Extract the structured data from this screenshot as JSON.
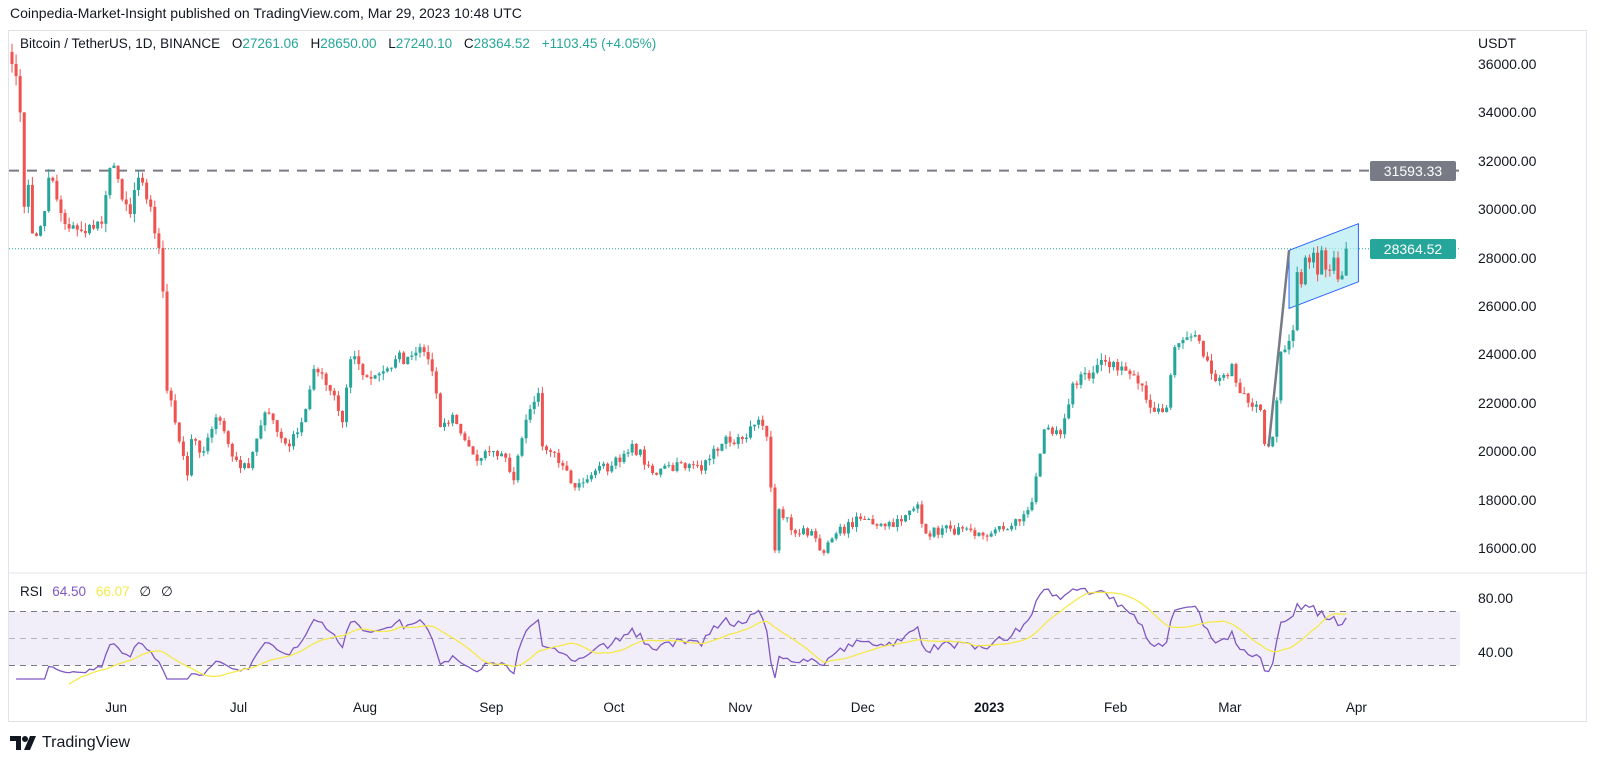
{
  "header": {
    "publisher": "Coinpedia-Market-Insight published on TradingView.com, Mar 29, 2023 10:48 UTC",
    "symbol": "Bitcoin / TetherUS, 1D, BINANCE",
    "open_label": "O",
    "open": "27261.06",
    "high_label": "H",
    "high": "28650.00",
    "low_label": "L",
    "low": "27240.10",
    "close_label": "C",
    "close": "28364.52",
    "change": "+1103.45 (+4.05%)"
  },
  "price_axis": {
    "currency": "USDT",
    "ticks": [
      "36000.00",
      "34000.00",
      "32000.00",
      "30000.00",
      "28000.00",
      "26000.00",
      "24000.00",
      "22000.00",
      "20000.00",
      "18000.00",
      "16000.00"
    ]
  },
  "markers": {
    "horizontal_level": "31593.33",
    "last_price": "28364.52"
  },
  "time_axis": {
    "ticks": [
      {
        "label": "Jun",
        "date": "2022-06-01"
      },
      {
        "label": "Jul",
        "date": "2022-07-01"
      },
      {
        "label": "Aug",
        "date": "2022-08-01"
      },
      {
        "label": "Sep",
        "date": "2022-09-01"
      },
      {
        "label": "Oct",
        "date": "2022-10-01"
      },
      {
        "label": "Nov",
        "date": "2022-11-01"
      },
      {
        "label": "Dec",
        "date": "2022-12-01"
      },
      {
        "label": "2023",
        "date": "2023-01-01"
      },
      {
        "label": "Feb",
        "date": "2023-02-01"
      },
      {
        "label": "Mar",
        "date": "2023-03-01"
      },
      {
        "label": "Apr",
        "date": "2023-04-01"
      }
    ]
  },
  "rsi": {
    "label": "RSI",
    "value": "64.50",
    "ma": "66.07",
    "na1": "∅",
    "na2": "∅",
    "ticks": [
      "80.00",
      "40.00"
    ],
    "upper": 70,
    "middle": 50,
    "lower": 30
  },
  "footer": {
    "brand": "TradingView"
  },
  "colors": {
    "up": "#26a69a",
    "down": "#ef5350",
    "rsi": "#7e57c2",
    "rsi_ma": "#f5e94a",
    "level": "#787b86",
    "channel": "#2962ff"
  },
  "chart_data": {
    "type": "candlestick",
    "title": "Bitcoin / TetherUS, 1D, BINANCE",
    "ylabel": "USDT",
    "ylim": [
      15500,
      36300
    ],
    "start_date": "2022-05-06",
    "end_date": "2023-03-29",
    "last_candle": {
      "open": 27261.06,
      "high": 28650.0,
      "low": 27240.1,
      "close": 28364.52
    },
    "horizontal_level": 31593.33,
    "channel": {
      "start_date": "2023-03-15",
      "end_date": "2023-04-01",
      "upper": [
        28300,
        29400
      ],
      "lower": [
        25900,
        27000
      ]
    },
    "flagpole": {
      "from": [
        "2023-03-10",
        20200
      ],
      "to": [
        "2023-03-15",
        28300
      ]
    },
    "approx_closes": [
      [
        "2022-05-06",
        36000
      ],
      [
        "2022-05-07",
        35500
      ],
      [
        "2022-05-08",
        34000
      ],
      [
        "2022-05-09",
        30100
      ],
      [
        "2022-05-10",
        31000
      ],
      [
        "2022-05-11",
        29000
      ],
      [
        "2022-05-12",
        28900
      ],
      [
        "2022-05-13",
        29300
      ],
      [
        "2022-05-15",
        31300
      ],
      [
        "2022-05-17",
        30400
      ],
      [
        "2022-05-20",
        29200
      ],
      [
        "2022-05-23",
        29100
      ],
      [
        "2022-05-26",
        29200
      ],
      [
        "2022-05-28",
        29400
      ],
      [
        "2022-05-30",
        31700
      ],
      [
        "2022-05-31",
        31800
      ],
      [
        "2022-06-02",
        30400
      ],
      [
        "2022-06-04",
        29800
      ],
      [
        "2022-06-06",
        31300
      ],
      [
        "2022-06-07",
        31100
      ],
      [
        "2022-06-09",
        30100
      ],
      [
        "2022-06-10",
        29000
      ],
      [
        "2022-06-11",
        28400
      ],
      [
        "2022-06-12",
        26600
      ],
      [
        "2022-06-13",
        22500
      ],
      [
        "2022-06-14",
        22100
      ],
      [
        "2022-06-16",
        20400
      ],
      [
        "2022-06-18",
        19000
      ],
      [
        "2022-06-19",
        20500
      ],
      [
        "2022-06-22",
        20000
      ],
      [
        "2022-06-25",
        21400
      ],
      [
        "2022-06-28",
        20300
      ],
      [
        "2022-07-01",
        19300
      ],
      [
        "2022-07-03",
        19300
      ],
      [
        "2022-07-07",
        21600
      ],
      [
        "2022-07-10",
        20800
      ],
      [
        "2022-07-13",
        20200
      ],
      [
        "2022-07-16",
        21200
      ],
      [
        "2022-07-19",
        23400
      ],
      [
        "2022-07-21",
        23200
      ],
      [
        "2022-07-23",
        22500
      ],
      [
        "2022-07-26",
        21200
      ],
      [
        "2022-07-28",
        23800
      ],
      [
        "2022-07-30",
        23600
      ],
      [
        "2022-08-02",
        23000
      ],
      [
        "2022-08-05",
        23300
      ],
      [
        "2022-08-08",
        23800
      ],
      [
        "2022-08-11",
        23900
      ],
      [
        "2022-08-14",
        24300
      ],
      [
        "2022-08-15",
        24100
      ],
      [
        "2022-08-17",
        23300
      ],
      [
        "2022-08-19",
        21000
      ],
      [
        "2022-08-22",
        21500
      ],
      [
        "2022-08-26",
        20200
      ],
      [
        "2022-08-28",
        19600
      ],
      [
        "2022-08-30",
        20000
      ],
      [
        "2022-09-03",
        19900
      ],
      [
        "2022-09-06",
        18800
      ],
      [
        "2022-09-09",
        21300
      ],
      [
        "2022-09-12",
        22400
      ],
      [
        "2022-09-13",
        20200
      ],
      [
        "2022-09-18",
        19400
      ],
      [
        "2022-09-21",
        18500
      ],
      [
        "2022-09-26",
        19200
      ],
      [
        "2022-09-30",
        19400
      ],
      [
        "2022-10-05",
        20300
      ],
      [
        "2022-10-10",
        19100
      ],
      [
        "2022-10-13",
        19400
      ],
      [
        "2022-10-18",
        19300
      ],
      [
        "2022-10-22",
        19200
      ],
      [
        "2022-10-25",
        20100
      ],
      [
        "2022-10-28",
        20600
      ],
      [
        "2022-11-01",
        20500
      ],
      [
        "2022-11-05",
        21300
      ],
      [
        "2022-11-07",
        20600
      ],
      [
        "2022-11-08",
        18500
      ],
      [
        "2022-11-09",
        15900
      ],
      [
        "2022-11-10",
        17600
      ],
      [
        "2022-11-14",
        16600
      ],
      [
        "2022-11-18",
        16700
      ],
      [
        "2022-11-21",
        15800
      ],
      [
        "2022-11-24",
        16600
      ],
      [
        "2022-11-30",
        17200
      ],
      [
        "2022-12-05",
        17000
      ],
      [
        "2022-12-10",
        17100
      ],
      [
        "2022-12-14",
        17800
      ],
      [
        "2022-12-16",
        16600
      ],
      [
        "2022-12-22",
        16800
      ],
      [
        "2022-12-28",
        16500
      ],
      [
        "2023-01-01",
        16600
      ],
      [
        "2023-01-08",
        17100
      ],
      [
        "2023-01-11",
        17900
      ],
      [
        "2023-01-13",
        19900
      ],
      [
        "2023-01-14",
        20900
      ],
      [
        "2023-01-18",
        20700
      ],
      [
        "2023-01-21",
        22800
      ],
      [
        "2023-01-25",
        23000
      ],
      [
        "2023-01-29",
        23700
      ],
      [
        "2023-02-02",
        23500
      ],
      [
        "2023-02-06",
        22800
      ],
      [
        "2023-02-09",
        21800
      ],
      [
        "2023-02-13",
        21800
      ],
      [
        "2023-02-15",
        24300
      ],
      [
        "2023-02-17",
        24600
      ],
      [
        "2023-02-20",
        24800
      ],
      [
        "2023-02-24",
        23200
      ],
      [
        "2023-02-28",
        23100
      ],
      [
        "2023-03-01",
        23600
      ],
      [
        "2023-03-03",
        22400
      ],
      [
        "2023-03-08",
        21700
      ],
      [
        "2023-03-09",
        20300
      ],
      [
        "2023-03-10",
        20200
      ],
      [
        "2023-03-11",
        20600
      ],
      [
        "2023-03-12",
        22100
      ],
      [
        "2023-03-13",
        24100
      ],
      [
        "2023-03-14",
        24200
      ],
      [
        "2023-03-16",
        25000
      ],
      [
        "2023-03-17",
        27400
      ],
      [
        "2023-03-18",
        26900
      ],
      [
        "2023-03-19",
        28000
      ],
      [
        "2023-03-20",
        27800
      ],
      [
        "2023-03-21",
        28200
      ],
      [
        "2023-03-22",
        27300
      ],
      [
        "2023-03-23",
        28300
      ],
      [
        "2023-03-24",
        27500
      ],
      [
        "2023-03-26",
        28000
      ],
      [
        "2023-03-27",
        27100
      ],
      [
        "2023-03-28",
        27261.06
      ],
      [
        "2023-03-29",
        28364.52
      ]
    ]
  }
}
